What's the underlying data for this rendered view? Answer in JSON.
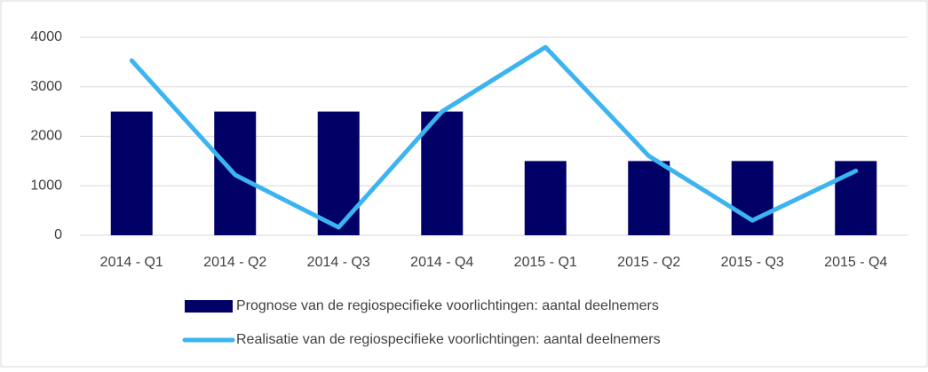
{
  "chart_data": {
    "type": "bar",
    "categories": [
      "2014 - Q1",
      "2014 - Q2",
      "2014 - Q3",
      "2014 - Q4",
      "2015 - Q1",
      "2015 - Q2",
      "2015 - Q3",
      "2015 - Q4"
    ],
    "series": [
      {
        "name": "Prognose van de regiospecifieke voorlichtingen: aantal deelnemers",
        "type": "bar",
        "color": "#000066",
        "values": [
          2500,
          2500,
          2500,
          2500,
          1500,
          1500,
          1500,
          1500
        ]
      },
      {
        "name": "Realisatie van de regiospecifieke voorlichtingen: aantal deelnemers",
        "type": "line",
        "color": "#3bb4f0",
        "values": [
          3530,
          1220,
          160,
          2500,
          3800,
          1600,
          300,
          1300
        ]
      }
    ],
    "ylim": [
      0,
      4000
    ],
    "yticks": [
      0,
      1000,
      2000,
      3000,
      4000
    ],
    "grid": true,
    "legend": "bottom"
  }
}
